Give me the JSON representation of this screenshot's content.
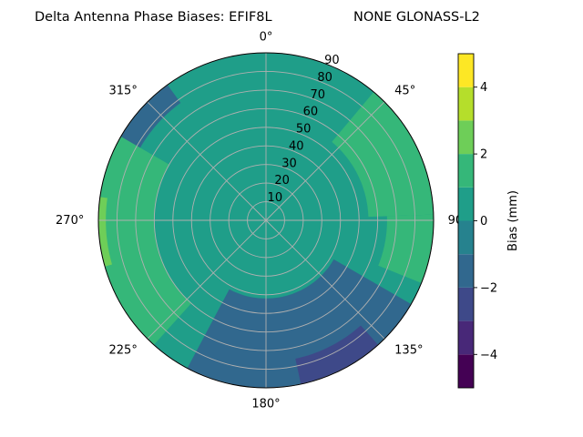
{
  "header": {
    "title": "Delta Antenna Phase Biases: EFIF8L",
    "subtitle": "NONE GLONASS-L2"
  },
  "chart_data": {
    "type": "polar-contour",
    "title": "Delta Antenna Phase Biases: EFIF8L",
    "subtitle": "NONE GLONASS-L2",
    "theta_zero": "top",
    "theta_direction": "clockwise",
    "angle_ticks": [
      {
        "deg": 0,
        "label": "0°"
      },
      {
        "deg": 45,
        "label": "45°"
      },
      {
        "deg": 90,
        "label": "90"
      },
      {
        "deg": 135,
        "label": "135°"
      },
      {
        "deg": 180,
        "label": "180°"
      },
      {
        "deg": 225,
        "label": "225°"
      },
      {
        "deg": 270,
        "label": "270°"
      },
      {
        "deg": 315,
        "label": "315°"
      }
    ],
    "radial_ticks": [
      10,
      20,
      30,
      40,
      50,
      60,
      70,
      80,
      90
    ],
    "radial_label_angle_deg": 22.5,
    "rlim": [
      0,
      90
    ],
    "grid": true,
    "colorbar": {
      "label": "Bias (mm)",
      "levels": [
        -5,
        -4,
        -3,
        -2,
        -1,
        0,
        1,
        2,
        3,
        4,
        5
      ],
      "ticks": [
        4,
        2,
        0,
        -2,
        -4
      ],
      "colors": [
        "#440154",
        "#482878",
        "#3e4989",
        "#31688e",
        "#26828e",
        "#1f9e89",
        "#35b779",
        "#6ece58",
        "#b5de2b",
        "#fde725"
      ],
      "placement": "right"
    },
    "field_regions": [
      {
        "name": "bias-region-northwest",
        "value": -1.5,
        "theta": [
          296,
          324
        ],
        "r": [
          78,
          90
        ]
      },
      {
        "name": "bias-region-east-upper",
        "value": 1.5,
        "theta": [
          40,
          88
        ],
        "r": [
          55,
          90
        ]
      },
      {
        "name": "bias-region-east-lower",
        "value": 1.5,
        "theta": [
          88,
          112
        ],
        "r": [
          65,
          90
        ]
      },
      {
        "name": "bias-region-west",
        "value": 1.5,
        "theta": [
          222,
          300
        ],
        "r": [
          60,
          90
        ]
      },
      {
        "name": "bias-region-west-high",
        "value": 2.5,
        "theta": [
          254,
          278
        ],
        "r": [
          86,
          90
        ]
      },
      {
        "name": "bias-region-south",
        "value": -1.5,
        "theta": [
          120,
          208
        ],
        "r": [
          42,
          90
        ]
      },
      {
        "name": "bias-region-southeast",
        "value": -2.5,
        "theta": [
          138,
          168
        ],
        "r": [
          76,
          90
        ]
      }
    ]
  }
}
